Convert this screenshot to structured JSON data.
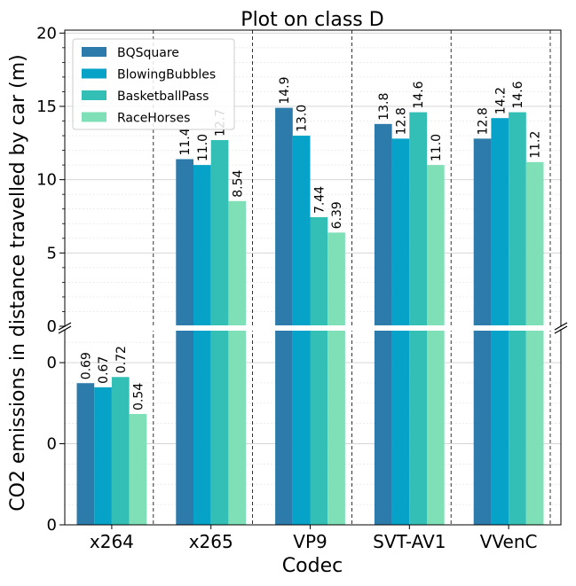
{
  "chart_data": {
    "type": "bar",
    "title": "Plot on class D",
    "xlabel": "Codec",
    "ylabel": "CO2 emissions in distance travelled by car (m)",
    "categories": [
      "x264",
      "x265",
      "VP9",
      "SVT-AV1",
      "VVenC"
    ],
    "series": [
      {
        "name": "BQSquare",
        "color": "#2c7bab",
        "values": [
          0.69,
          11.4,
          14.9,
          13.8,
          12.8
        ],
        "labels": [
          "0.69",
          "11.4",
          "14.9",
          "13.8",
          "12.8"
        ]
      },
      {
        "name": "BlowingBubbles",
        "color": "#06a2c8",
        "values": [
          0.67,
          11.0,
          13.0,
          12.8,
          14.2
        ],
        "labels": [
          "0.67",
          "11.0",
          "13.0",
          "12.8",
          "14.2"
        ]
      },
      {
        "name": "BasketballPass",
        "color": "#33bfb6",
        "values": [
          0.72,
          12.7,
          7.44,
          14.6,
          14.6
        ],
        "labels": [
          "0.72",
          "12.7",
          "7.44",
          "14.6",
          "14.6"
        ]
      },
      {
        "name": "RaceHorses",
        "color": "#7fe0b7",
        "values": [
          0.54,
          8.54,
          6.39,
          11.0,
          11.2
        ],
        "labels": [
          "0.54",
          "8.54",
          "6.39",
          "11.0",
          "11.2"
        ]
      }
    ],
    "upper_axis": {
      "ylim": [
        0,
        20.2
      ],
      "ticks": [
        0,
        5,
        10,
        15,
        20
      ],
      "tick_labels": [
        "0",
        "5",
        "10",
        "15",
        "20"
      ]
    },
    "lower_axis": {
      "ylim": [
        0,
        0.95
      ],
      "ticks": [
        0,
        0.395,
        0.79
      ],
      "tick_labels": [
        "0",
        "0",
        "0"
      ]
    },
    "broken_axis": true,
    "grid": true,
    "legend_position": "top-left"
  }
}
